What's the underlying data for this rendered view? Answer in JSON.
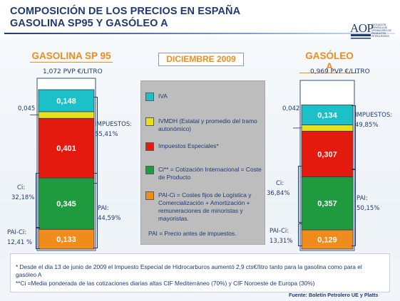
{
  "header": {
    "title_line1": "COMPOSICIÓN DE LOS PRECIOS EN ESPAÑA",
    "title_line2": "GASOLINA SP95 Y GASÓLEO A"
  },
  "logo": {
    "text": "AOP",
    "subtitle": "ASOCIACIÓN ESPAÑOLA DE OPERADORES DE PRODUCTOS PETROLÍFEROS"
  },
  "date_label": "DICIEMBRE 2009",
  "colors": {
    "iva": "#1cc0c8",
    "ivmdh": "#e8e01e",
    "impuestos_especiales": "#e41a0e",
    "ci": "#1f9a3e",
    "pai_ci": "#f08c1c",
    "text": "#1f3a73",
    "accent": "#f08c1c"
  },
  "legend": {
    "items": [
      {
        "key": "iva",
        "label": "IVA"
      },
      {
        "key": "ivmdh",
        "label": "IVMDH (Estatal y promedio del tramo autonómico)"
      },
      {
        "key": "impuestos_especiales",
        "label": "Impuestos Especiales*"
      },
      {
        "key": "ci",
        "label": "Ci** = Cotización Internacional = Coste de Producto"
      },
      {
        "key": "pai_ci",
        "label": "PAI-Ci = Costes fijos de Logística y Comercialización + Amortización + remuneraciones de minoristas y mayoristas."
      }
    ],
    "pai_definition": "PAI  =  Precio antes de impuestos."
  },
  "chart_data": [
    {
      "type": "bar",
      "stacked": true,
      "title": "GASOLINA SP 95",
      "total_label": "1,072 PVP €/LITRO",
      "total": 1.072,
      "segments_bottom_to_top": [
        {
          "key": "pai_ci",
          "value": 0.133,
          "label": "0,133"
        },
        {
          "key": "ci",
          "value": 0.345,
          "label": "0,345"
        },
        {
          "key": "impuestos_especiales",
          "value": 0.401,
          "label": "0,401"
        },
        {
          "key": "ivmdh",
          "value": 0.045,
          "label": "0,045"
        },
        {
          "key": "iva",
          "value": 0.148,
          "label": "0,148"
        }
      ],
      "annotations": {
        "impuestos": {
          "label": "IMPUESTOS:",
          "pct": "55,41%"
        },
        "pai": {
          "label": "PAI:",
          "pct": "44,59%"
        },
        "ci": {
          "label": "Ci:",
          "pct": "32,18%"
        },
        "pai_ci": {
          "label": "PAI-Ci:",
          "pct": "12,41 %"
        }
      }
    },
    {
      "type": "bar",
      "stacked": true,
      "title": "GASÓLEO A",
      "total_label": "0,969  PVP €/LITRO",
      "total": 0.969,
      "segments_bottom_to_top": [
        {
          "key": "pai_ci",
          "value": 0.129,
          "label": "0,129"
        },
        {
          "key": "ci",
          "value": 0.357,
          "label": "0,357"
        },
        {
          "key": "impuestos_especiales",
          "value": 0.307,
          "label": "0,307"
        },
        {
          "key": "ivmdh",
          "value": 0.042,
          "label": "0,042"
        },
        {
          "key": "iva",
          "value": 0.134,
          "label": "0,134"
        }
      ],
      "annotations": {
        "impuestos": {
          "label": "IMPUESTOS:",
          "pct": "49,85%"
        },
        "pai": {
          "label": "PAI:",
          "pct": "50,15%"
        },
        "ci": {
          "label": "Ci:",
          "pct": "36,84%"
        },
        "pai_ci": {
          "label": "PAI-Ci:",
          "pct": "13,31%"
        }
      }
    }
  ],
  "notes": {
    "note1": "* Desde el día 13 de junio de 2009 el Impuesto Especial de Hidrocarburos aumentó 2,9 cts€/litro tanto para la gasolina como para el gasóleo A",
    "note2": "**Ci =Media ponderada de las cotizaciones diarias altas CIF Mediterráneo (70%) y CIF Noroeste de Europa (30%)"
  },
  "source": "Fuente: Boletín Petrolero UE y Platts"
}
